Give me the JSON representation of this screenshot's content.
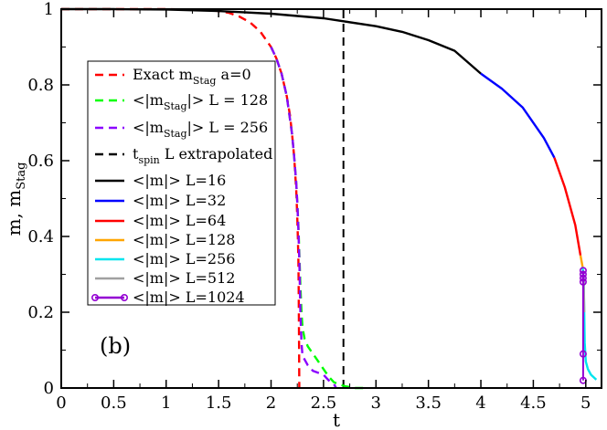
{
  "chart_data": {
    "type": "line",
    "panel_label": "(b)",
    "xlabel": "t",
    "ylabel": "m, m",
    "ylabel_sub": "Stag",
    "xlim": [
      0,
      5.15
    ],
    "ylim": [
      0,
      1
    ],
    "xticks": [
      "0",
      "0.5",
      "1",
      "1.5",
      "2",
      "2.5",
      "3",
      "3.5",
      "4",
      "4.5",
      "5"
    ],
    "yticks": [
      "0",
      "0.2",
      "0.4",
      "0.6",
      "0.8",
      "1"
    ],
    "vline": {
      "name": "t_spin L extrapolated",
      "x": 2.69,
      "color": "#000000"
    },
    "series": [
      {
        "id": "exact",
        "dash": true,
        "color": "#ff0000",
        "x": [
          0,
          0.5,
          1.0,
          1.2,
          1.4,
          1.5,
          1.6,
          1.7,
          1.8,
          1.9,
          2.0,
          2.05,
          2.1,
          2.15,
          2.18,
          2.2,
          2.22,
          2.24,
          2.25,
          2.255,
          2.26,
          2.263,
          2.265,
          2.267,
          2.269
        ],
        "y": [
          1,
          1,
          1,
          0.999,
          0.997,
          0.995,
          0.99,
          0.98,
          0.965,
          0.94,
          0.9,
          0.87,
          0.83,
          0.77,
          0.72,
          0.67,
          0.61,
          0.52,
          0.45,
          0.4,
          0.34,
          0.27,
          0.2,
          0.1,
          0
        ]
      },
      {
        "id": "stag128",
        "dash": true,
        "color": "#00ff00",
        "x": [
          2.0,
          2.05,
          2.1,
          2.15,
          2.2,
          2.22,
          2.24,
          2.25,
          2.26,
          2.27,
          2.28,
          2.29,
          2.3,
          2.32,
          2.35,
          2.4,
          2.45,
          2.5,
          2.55,
          2.6,
          2.7,
          2.8,
          2.9
        ],
        "y": [
          0.9,
          0.87,
          0.83,
          0.77,
          0.67,
          0.61,
          0.54,
          0.49,
          0.43,
          0.35,
          0.27,
          0.2,
          0.16,
          0.13,
          0.11,
          0.09,
          0.07,
          0.05,
          0.03,
          0.015,
          0.005,
          0,
          0
        ]
      },
      {
        "id": "stag256",
        "dash": true,
        "color": "#8b00ff",
        "x": [
          2.0,
          2.05,
          2.1,
          2.15,
          2.2,
          2.22,
          2.24,
          2.25,
          2.26,
          2.27,
          2.275,
          2.28,
          2.29,
          2.3,
          2.35,
          2.4,
          2.45,
          2.5,
          2.55,
          2.6,
          2.62
        ],
        "y": [
          0.9,
          0.87,
          0.83,
          0.77,
          0.67,
          0.61,
          0.54,
          0.49,
          0.42,
          0.33,
          0.26,
          0.2,
          0.12,
          0.085,
          0.06,
          0.045,
          0.04,
          0.035,
          0.02,
          0.01,
          0
        ]
      },
      {
        "id": "L16",
        "dash": false,
        "color": "#000000",
        "x": [
          0,
          0.5,
          1.0,
          1.5,
          2.0,
          2.5,
          3.0,
          3.25,
          3.5,
          3.75,
          4.0
        ],
        "y": [
          1,
          1,
          0.999,
          0.995,
          0.988,
          0.976,
          0.955,
          0.94,
          0.918,
          0.89,
          0.83
        ]
      },
      {
        "id": "L32",
        "dash": false,
        "color": "#0000ff",
        "x": [
          4.0,
          4.2,
          4.4,
          4.6,
          4.7
        ],
        "y": [
          0.83,
          0.79,
          0.74,
          0.66,
          0.608
        ]
      },
      {
        "id": "L64",
        "dash": false,
        "color": "#ff0000",
        "x": [
          4.7,
          4.8,
          4.9,
          4.95
        ],
        "y": [
          0.608,
          0.53,
          0.43,
          0.35
        ]
      },
      {
        "id": "L128",
        "dash": false,
        "color": "#ffa500",
        "x": [
          4.95,
          4.97
        ],
        "y": [
          0.35,
          0.32
        ]
      },
      {
        "id": "L256",
        "dash": false,
        "color": "#00e5ee",
        "x": [
          4.97,
          4.98,
          4.985,
          4.99,
          5.0,
          5.02,
          5.05,
          5.1
        ],
        "y": [
          0.32,
          0.29,
          0.2,
          0.12,
          0.07,
          0.05,
          0.035,
          0.022
        ]
      },
      {
        "id": "L512",
        "dash": false,
        "color": "#a0a0a0",
        "x": [
          4.975,
          4.98,
          4.985
        ],
        "y": [
          0.3,
          0.28,
          0.2
        ]
      },
      {
        "id": "L1024",
        "dash": false,
        "color": "#9400d3",
        "markers": true,
        "x": [
          4.975,
          4.975,
          4.975,
          4.975,
          4.975,
          4.975
        ],
        "y": [
          0.31,
          0.3,
          0.29,
          0.28,
          0.09,
          0.02
        ]
      }
    ],
    "legend": [
      {
        "series": "exact",
        "label": "Exact m",
        "sub": "Stag",
        "after": " a=0"
      },
      {
        "series": "stag128",
        "label": "<|m",
        "sub": "Stag",
        "after": "|> L = 128"
      },
      {
        "series": "stag256",
        "label": "<|m",
        "sub": "Stag",
        "after": "|> L = 256"
      },
      {
        "series": "vline",
        "label": "t",
        "sub": "spin",
        "after": " L extrapolated"
      },
      {
        "series": "L16",
        "label": "<|m|> L=16"
      },
      {
        "series": "L32",
        "label": "<|m|> L=32"
      },
      {
        "series": "L64",
        "label": "<|m|> L=64"
      },
      {
        "series": "L128",
        "label": "<|m|> L=128"
      },
      {
        "series": "L256",
        "label": "<|m|> L=256"
      },
      {
        "series": "L512",
        "label": "<|m|> L=512"
      },
      {
        "series": "L1024",
        "label": "<|m|> L=1024"
      }
    ]
  }
}
